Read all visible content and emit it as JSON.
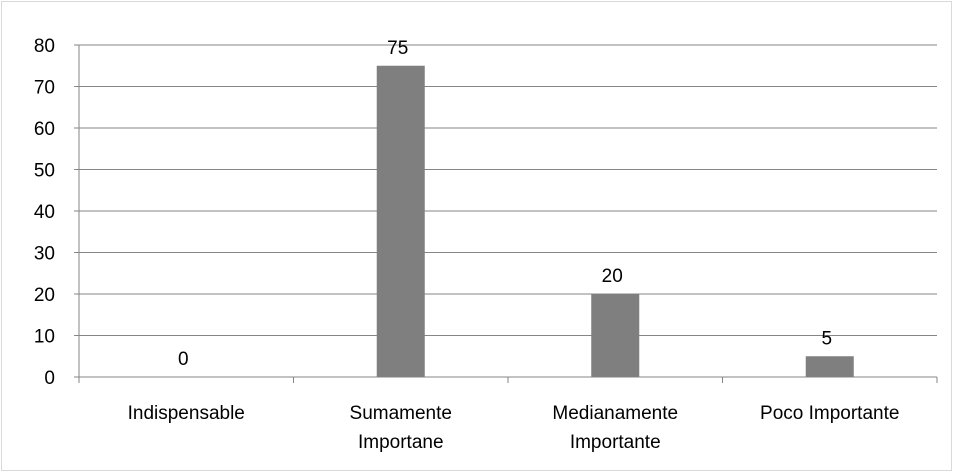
{
  "chart_data": {
    "type": "bar",
    "categories": [
      [
        "Indispensable"
      ],
      [
        "Sumamente",
        "Importane"
      ],
      [
        "Medianamente",
        "Importante"
      ],
      [
        "Poco Importante"
      ]
    ],
    "values": [
      0,
      75,
      20,
      5
    ],
    "data_labels": [
      "0",
      "75",
      "20",
      "5"
    ],
    "ylim": [
      0,
      80
    ],
    "yticks": [
      "0",
      "10",
      "20",
      "30",
      "40",
      "50",
      "60",
      "70",
      "80"
    ],
    "grid": true,
    "legend": "none",
    "bar_color": "#7f7f7f",
    "grid_color": "#868686"
  }
}
